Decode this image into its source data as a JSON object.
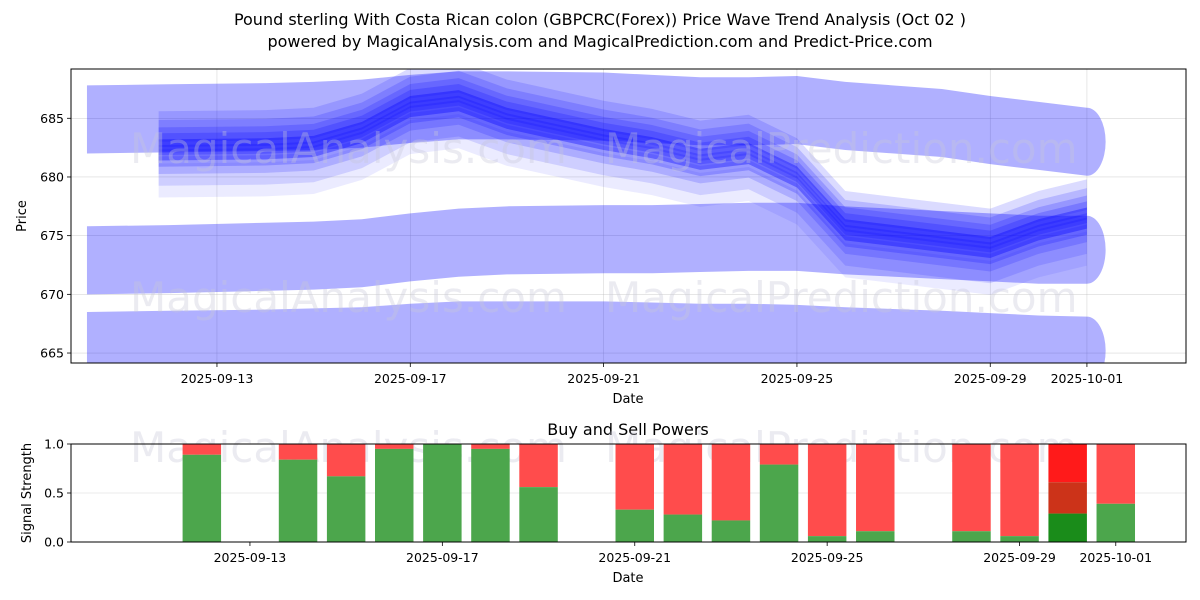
{
  "header": {
    "title": "Pound sterling With Costa Rican colon (GBPCRC(Forex)) Price Wave Trend Analysis (Oct 02 )",
    "subtitle": "powered by MagicalAnalysis.com and MagicalPrediction.com and Predict-Price.com"
  },
  "watermarks": [
    "MagicalAnalysis.com",
    "MagicalPrediction.com"
  ],
  "colors": {
    "band": "#0000ff",
    "buy": "#4ca64c",
    "sell": "#ff4c4c",
    "buy_strong": "#1a8c1a",
    "sell_mid": "#cc3319",
    "sell_strong": "#ff1a1a",
    "grid": "#b0b0b0",
    "axis": "#000000"
  },
  "chart_data": [
    {
      "type": "area",
      "title": "",
      "xlabel": "Date",
      "ylabel": "Price",
      "ylim": [
        664.15,
        689.2
      ],
      "xlim": [
        "2025-09-09",
        "2025-10-02"
      ],
      "grid": true,
      "x_ticks": [
        "2025-09-13",
        "2025-09-17",
        "2025-09-21",
        "2025-09-25",
        "2025-09-29",
        "2025-10-01"
      ],
      "y_ticks": [
        665,
        670,
        675,
        680,
        685
      ],
      "x": [
        "2025-09-10",
        "2025-09-12",
        "2025-09-14",
        "2025-09-15",
        "2025-09-16",
        "2025-09-17",
        "2025-09-18",
        "2025-09-19",
        "2025-09-21",
        "2025-09-22",
        "2025-09-23",
        "2025-09-24",
        "2025-09-25",
        "2025-09-26",
        "2025-09-28",
        "2025-09-29",
        "2025-09-30",
        "2025-10-01"
      ],
      "price_line": [
        682.0,
        682.3,
        682.4,
        682.6,
        683.8,
        686.0,
        686.5,
        685.0,
        683.2,
        682.5,
        681.5,
        682.0,
        680.0,
        675.5,
        674.5,
        674.0,
        675.5,
        676.5
      ],
      "series": [
        {
          "name": "upper-band",
          "center": [
            684.9,
            685.0,
            685.1,
            685.2,
            685.4,
            685.8,
            686.1,
            686.1,
            686.0,
            685.8,
            685.6,
            685.6,
            685.7,
            685.2,
            684.6,
            684.0,
            683.5,
            683.0
          ],
          "width": 5.8
        },
        {
          "name": "middle-band",
          "center": [
            672.9,
            673.0,
            673.2,
            673.3,
            673.5,
            674.0,
            674.4,
            674.6,
            674.7,
            674.7,
            674.8,
            674.9,
            674.9,
            674.6,
            674.2,
            674.0,
            673.8,
            673.8
          ],
          "width": 5.8
        },
        {
          "name": "lower-band",
          "center": [
            665.6,
            665.7,
            665.8,
            665.9,
            666.0,
            666.3,
            666.5,
            666.5,
            666.5,
            666.4,
            666.3,
            666.3,
            666.2,
            666.0,
            665.7,
            665.5,
            665.3,
            665.2
          ],
          "width": 5.8
        }
      ],
      "wave_spread": [
        {
          "offset": 2.0,
          "alpha": 0.14
        },
        {
          "offset": 1.4,
          "alpha": 0.16
        },
        {
          "offset": 0.9,
          "alpha": 0.18
        },
        {
          "offset": 0.5,
          "alpha": 0.2
        },
        {
          "offset": -0.5,
          "alpha": 0.2
        },
        {
          "offset": -1.0,
          "alpha": 0.16
        },
        {
          "offset": -1.8,
          "alpha": 0.12
        },
        {
          "offset": -2.6,
          "alpha": 0.08
        }
      ]
    },
    {
      "type": "bar",
      "title": "Buy and Sell Powers",
      "xlabel": "Date",
      "ylabel": "Signal Strength",
      "ylim": [
        0,
        1
      ],
      "xlim": [
        "2025-09-09.5",
        "2025-10-02.5"
      ],
      "grid": true,
      "x_ticks": [
        "2025-09-13",
        "2025-09-17",
        "2025-09-21",
        "2025-09-25",
        "2025-09-29",
        "2025-10-01"
      ],
      "y_ticks": [
        "0.0",
        "0.5",
        "1.0"
      ],
      "categories": [
        "2025-09-12",
        "2025-09-14",
        "2025-09-15",
        "2025-09-16",
        "2025-09-17",
        "2025-09-18",
        "2025-09-19",
        "2025-09-21",
        "2025-09-22",
        "2025-09-23",
        "2025-09-24",
        "2025-09-25",
        "2025-09-26",
        "2025-09-28",
        "2025-09-29",
        "2025-09-30",
        "2025-10-01"
      ],
      "series": [
        {
          "name": "Buy",
          "values": [
            0.89,
            0.84,
            0.67,
            0.95,
            1.0,
            0.95,
            0.56,
            0.33,
            0.28,
            0.22,
            0.79,
            0.06,
            0.11,
            0.11,
            0.06,
            0.29,
            0.39
          ]
        },
        {
          "name": "Sell",
          "values": [
            0.11,
            0.16,
            0.33,
            0.05,
            0.0,
            0.05,
            0.44,
            0.67,
            0.72,
            0.78,
            0.21,
            0.94,
            0.89,
            0.89,
            0.94,
            0.71,
            0.61
          ]
        }
      ],
      "highlight": {
        "category": "2025-09-30",
        "mid_level": 0.61
      }
    }
  ]
}
